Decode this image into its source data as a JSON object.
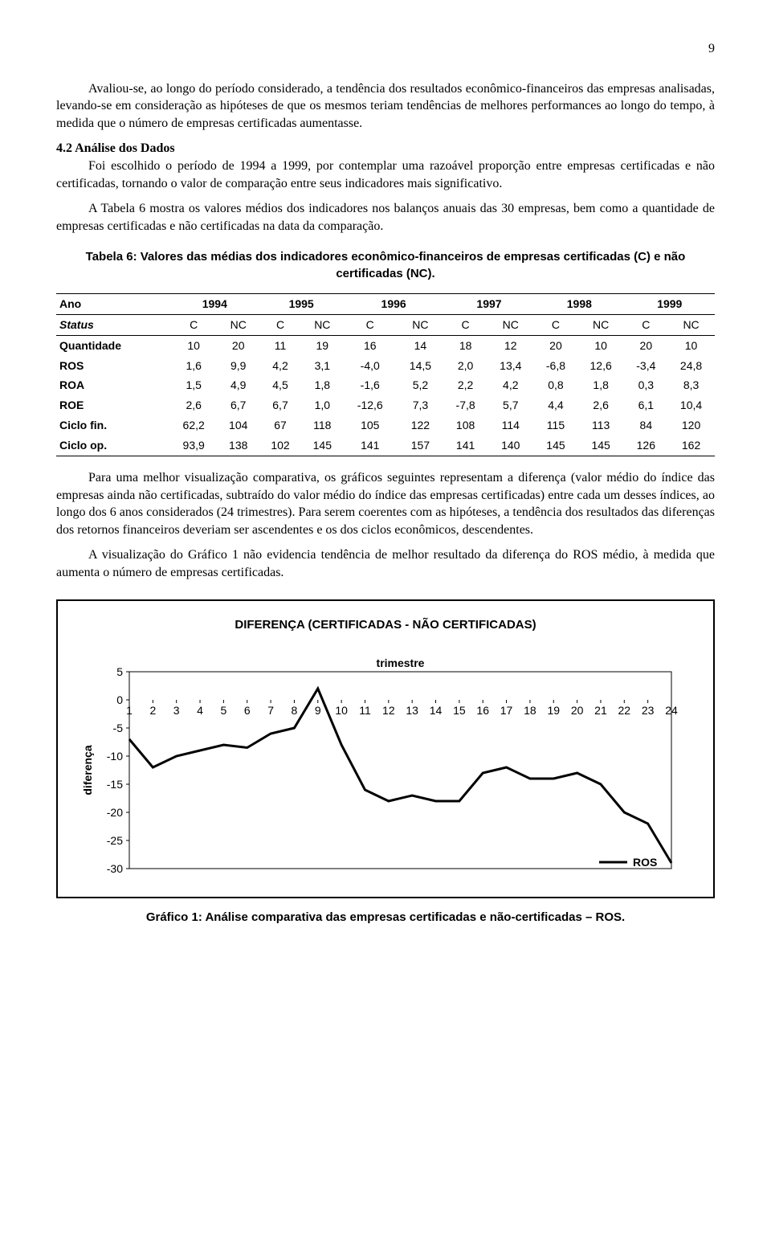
{
  "page_number": "9",
  "para1": "Avaliou-se, ao longo do período considerado, a tendência dos resultados econômico-financeiros das empresas analisadas, levando-se em consideração as hipóteses de que os mesmos teriam tendências de melhores performances ao longo do tempo, à medida que o número de empresas certificadas aumentasse.",
  "section_heading": "4.2 Análise dos Dados",
  "para2": "Foi escolhido o período de 1994 a 1999, por contemplar uma razoável proporção entre empresas certificadas e não certificadas, tornando o valor de comparação entre seus indicadores mais significativo.",
  "para3": "A Tabela 6 mostra os valores médios dos indicadores nos balanços anuais das 30 empresas, bem como a quantidade de empresas certificadas e não certificadas na data da comparação.",
  "table_caption": "Tabela 6: Valores das médias dos indicadores econômico-financeiros de empresas certificadas (C) e não certificadas (NC).",
  "table": {
    "year_label": "Ano",
    "years": [
      "1994",
      "1995",
      "1996",
      "1997",
      "1998",
      "1999"
    ],
    "status_label": "Status",
    "status_cols": [
      "C",
      "NC",
      "C",
      "NC",
      "C",
      "NC",
      "C",
      "NC",
      "C",
      "NC",
      "C",
      "NC"
    ],
    "rows": [
      {
        "label": "Quantidade",
        "vals": [
          "10",
          "20",
          "11",
          "19",
          "16",
          "14",
          "18",
          "12",
          "20",
          "10",
          "20",
          "10"
        ]
      },
      {
        "label": "ROS",
        "vals": [
          "1,6",
          "9,9",
          "4,2",
          "3,1",
          "-4,0",
          "14,5",
          "2,0",
          "13,4",
          "-6,8",
          "12,6",
          "-3,4",
          "24,8"
        ]
      },
      {
        "label": "ROA",
        "vals": [
          "1,5",
          "4,9",
          "4,5",
          "1,8",
          "-1,6",
          "5,2",
          "2,2",
          "4,2",
          "0,8",
          "1,8",
          "0,3",
          "8,3"
        ]
      },
      {
        "label": "ROE",
        "vals": [
          "2,6",
          "6,7",
          "6,7",
          "1,0",
          "-12,6",
          "7,3",
          "-7,8",
          "5,7",
          "4,4",
          "2,6",
          "6,1",
          "10,4"
        ]
      },
      {
        "label": "Ciclo fin.",
        "vals": [
          "62,2",
          "104",
          "67",
          "118",
          "105",
          "122",
          "108",
          "114",
          "115",
          "113",
          "84",
          "120"
        ]
      },
      {
        "label": "Ciclo op.",
        "vals": [
          "93,9",
          "138",
          "102",
          "145",
          "141",
          "157",
          "141",
          "140",
          "145",
          "145",
          "126",
          "162"
        ]
      }
    ]
  },
  "para4": "Para uma melhor visualização comparativa, os gráficos seguintes representam a diferença (valor médio do índice das empresas ainda não certificadas, subtraído do valor médio do índice das empresas certificadas) entre cada um desses índices, ao longo dos 6 anos considerados (24 trimestres). Para serem coerentes com as hipóteses, a tendência dos resultados das diferenças dos retornos financeiros deveriam ser ascendentes e os dos ciclos econômicos, descendentes.",
  "para5": "A visualização do Gráfico 1 não evidencia tendência de melhor resultado da diferença do ROS médio, à medida que aumenta o número de empresas certificadas.",
  "chart": {
    "title": "DIFERENÇA (CERTIFICADAS - NÃO CERTIFICADAS)",
    "x_label": "trimestre",
    "y_label": "diferença",
    "legend": "ROS",
    "x_ticks": [
      "1",
      "2",
      "3",
      "4",
      "5",
      "6",
      "7",
      "8",
      "9",
      "10",
      "11",
      "12",
      "13",
      "14",
      "15",
      "16",
      "17",
      "18",
      "19",
      "20",
      "21",
      "22",
      "23",
      "24"
    ],
    "y_ticks": [
      5,
      0,
      -5,
      -10,
      -15,
      -20,
      -25,
      -30
    ],
    "y_min": -30,
    "y_max": 5,
    "line_color": "#000000",
    "line_width": 3,
    "background": "#ffffff",
    "border_color": "#000000",
    "series": [
      -7,
      -12,
      -10,
      -9,
      -8,
      -8.5,
      -6,
      -5,
      2,
      -8,
      -16,
      -18,
      -17,
      -18,
      -18,
      -13,
      -12,
      -14,
      -14,
      -13,
      -15,
      -20,
      -22,
      -29
    ]
  },
  "figure_caption": "Gráfico 1: Análise comparativa das empresas certificadas e não-certificadas – ROS."
}
